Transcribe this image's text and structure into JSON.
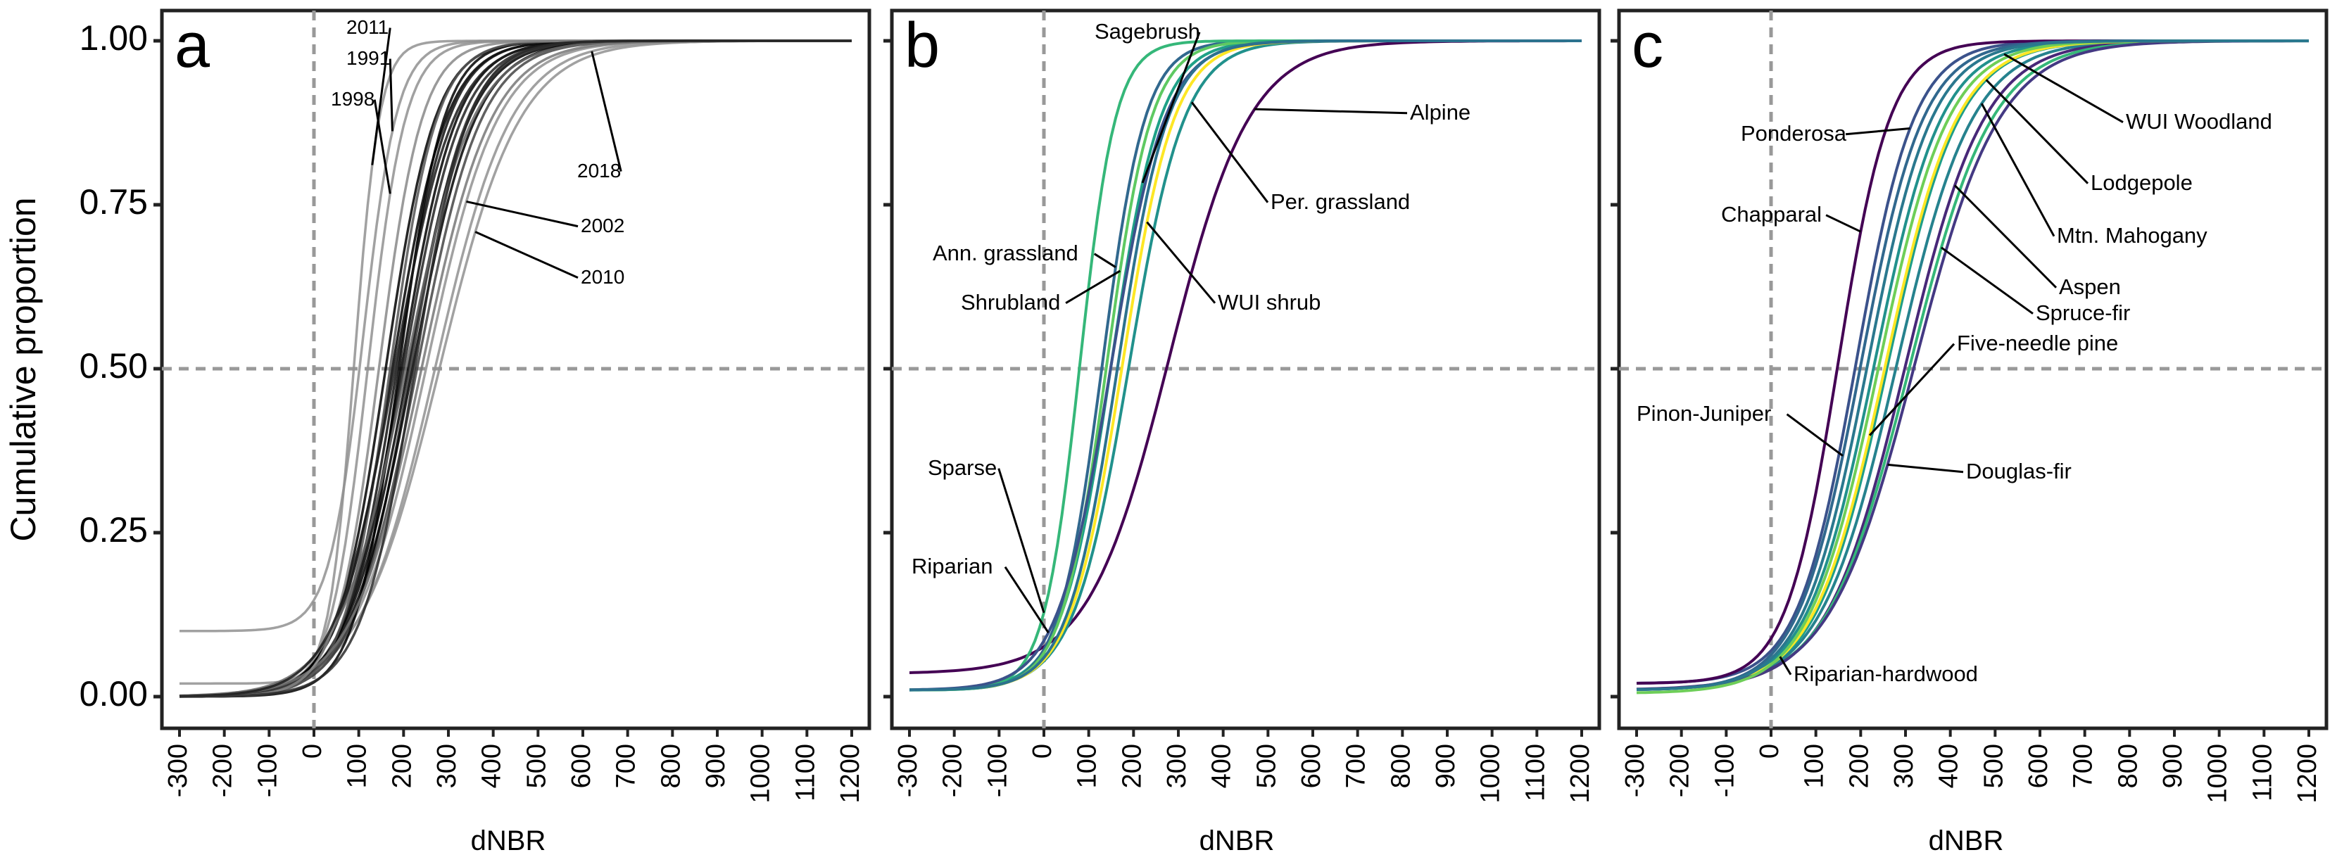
{
  "figure": {
    "ylabel": "Cumulative proportion",
    "xlabel": "dNBR",
    "ylim": [
      0,
      1
    ],
    "xlim": [
      -300,
      1200
    ],
    "yticks": [
      "0.00",
      "0.25",
      "0.50",
      "0.75",
      "1.00"
    ],
    "xticks": [
      "-300",
      "-200",
      "-100",
      "0",
      "100",
      "200",
      "300",
      "400",
      "500",
      "600",
      "700",
      "800",
      "900",
      "1000",
      "1100",
      "1200"
    ],
    "ref_lines": {
      "x": 0,
      "y": 0.5
    }
  },
  "chart_data": [
    {
      "panel": "a",
      "type": "line",
      "title": "a",
      "xlabel": "dNBR",
      "ylabel": "Cumulative proportion",
      "xlim": [
        -300,
        1200
      ],
      "ylim": [
        0,
        1
      ],
      "description_of_series": "annual cumulative dNBR curves",
      "series": [
        {
          "name": "2011",
          "mid": 90,
          "scale": 28,
          "base": 0.02,
          "color": "#909090",
          "label": "2011"
        },
        {
          "name": "1991",
          "mid": 110,
          "scale": 38,
          "base": 0.1,
          "color": "#909090",
          "label": "1991"
        },
        {
          "name": "1998",
          "mid": 120,
          "scale": 42,
          "base": 0.0,
          "color": "#909090",
          "label": "1998"
        },
        {
          "name": "2018",
          "mid": 270,
          "scale": 85,
          "base": 0.0,
          "color": "#909090",
          "label": "2018"
        },
        {
          "name": "2002",
          "mid": 250,
          "scale": 80,
          "base": 0.0,
          "color": "#909090",
          "label": "2002"
        },
        {
          "name": "2010",
          "mid": 280,
          "scale": 90,
          "base": 0.0,
          "color": "#909090",
          "label": "2010"
        },
        {
          "name": "y1",
          "mid": 160,
          "scale": 55,
          "base": 0.0,
          "color": "#000000"
        },
        {
          "name": "y2",
          "mid": 175,
          "scale": 60,
          "base": 0.0,
          "color": "#000000"
        },
        {
          "name": "y3",
          "mid": 185,
          "scale": 58,
          "base": 0.0,
          "color": "#111111"
        },
        {
          "name": "y4",
          "mid": 195,
          "scale": 62,
          "base": 0.0,
          "color": "#000000"
        },
        {
          "name": "y5",
          "mid": 200,
          "scale": 65,
          "base": 0.0,
          "color": "#222222"
        },
        {
          "name": "y6",
          "mid": 210,
          "scale": 68,
          "base": 0.0,
          "color": "#000000"
        },
        {
          "name": "y7",
          "mid": 215,
          "scale": 64,
          "base": 0.0,
          "color": "#333333"
        },
        {
          "name": "y8",
          "mid": 220,
          "scale": 70,
          "base": 0.0,
          "color": "#000000"
        },
        {
          "name": "y9",
          "mid": 230,
          "scale": 72,
          "base": 0.0,
          "color": "#444444"
        },
        {
          "name": "y10",
          "mid": 190,
          "scale": 50,
          "base": 0.0,
          "color": "#000000"
        },
        {
          "name": "y11",
          "mid": 170,
          "scale": 52,
          "base": 0.0,
          "color": "#555555"
        },
        {
          "name": "y12",
          "mid": 205,
          "scale": 75,
          "base": 0.0,
          "color": "#666666"
        },
        {
          "name": "y13",
          "mid": 240,
          "scale": 78,
          "base": 0.0,
          "color": "#777777"
        },
        {
          "name": "y14",
          "mid": 145,
          "scale": 48,
          "base": 0.0,
          "color": "#888888"
        },
        {
          "name": "y15",
          "mid": 180,
          "scale": 66,
          "base": 0.0,
          "color": "#1a1a1a"
        },
        {
          "name": "y16",
          "mid": 225,
          "scale": 60,
          "base": 0.0,
          "color": "#2a2a2a"
        }
      ]
    },
    {
      "panel": "b",
      "type": "line",
      "title": "b",
      "xlabel": "dNBR",
      "ylabel": "",
      "xlim": [
        -300,
        1200
      ],
      "ylim": [
        0,
        1
      ],
      "series": [
        {
          "name": "Sagebrush",
          "mid": 150,
          "scale": 55,
          "base": 0.01,
          "color": "#1fa187"
        },
        {
          "name": "Alpine",
          "mid": 280,
          "scale": 90,
          "base": 0.035,
          "color": "#440154"
        },
        {
          "name": "Per. grassland",
          "mid": 190,
          "scale": 62,
          "base": 0.01,
          "color": "#21918c"
        },
        {
          "name": "Ann. grassland",
          "mid": 130,
          "scale": 48,
          "base": 0.01,
          "color": "#31688e"
        },
        {
          "name": "Shrubland",
          "mid": 140,
          "scale": 50,
          "base": 0.01,
          "color": "#5ec962"
        },
        {
          "name": "WUI shrub",
          "mid": 175,
          "scale": 58,
          "base": 0.01,
          "color": "#fde725"
        },
        {
          "name": "Sparse",
          "mid": 80,
          "scale": 40,
          "base": 0.01,
          "color": "#35b779"
        },
        {
          "name": "Riparian",
          "mid": 150,
          "scale": 60,
          "base": 0.01,
          "color": "#3b528b"
        },
        {
          "name": "b9",
          "mid": 165,
          "scale": 56,
          "base": 0.01,
          "color": "#2c728e"
        }
      ],
      "labels": [
        "Sagebrush",
        "Alpine",
        "Per. grassland",
        "Ann. grassland",
        "Shrubland",
        "WUI shrub",
        "Sparse",
        "Riparian"
      ]
    },
    {
      "panel": "c",
      "type": "line",
      "title": "c",
      "xlabel": "dNBR",
      "ylabel": "",
      "xlim": [
        -300,
        1200
      ],
      "ylim": [
        0,
        1
      ],
      "series": [
        {
          "name": "Ponderosa",
          "mid": 190,
          "scale": 65,
          "base": 0.02,
          "color": "#3b528b"
        },
        {
          "name": "WUI Woodland",
          "mid": 230,
          "scale": 75,
          "base": 0.01,
          "color": "#21918c"
        },
        {
          "name": "Lodgepole",
          "mid": 260,
          "scale": 80,
          "base": 0.01,
          "color": "#1f9e89"
        },
        {
          "name": "Chapparal",
          "mid": 150,
          "scale": 58,
          "base": 0.02,
          "color": "#440154"
        },
        {
          "name": "Mtn. Mahogany",
          "mid": 280,
          "scale": 85,
          "base": 0.01,
          "color": "#26828e"
        },
        {
          "name": "Aspen",
          "mid": 300,
          "scale": 88,
          "base": 0.01,
          "color": "#482878"
        },
        {
          "name": "Spruce-fir",
          "mid": 310,
          "scale": 92,
          "base": 0.01,
          "color": "#35b779"
        },
        {
          "name": "Five-needle pine",
          "mid": 255,
          "scale": 80,
          "base": 0.01,
          "color": "#fde725"
        },
        {
          "name": "Pinon-Juniper",
          "mid": 200,
          "scale": 70,
          "base": 0.01,
          "color": "#31688e"
        },
        {
          "name": "Douglas-fir",
          "mid": 320,
          "scale": 95,
          "base": 0.01,
          "color": "#443983"
        },
        {
          "name": "Riparian-hardwood",
          "mid": 240,
          "scale": 78,
          "base": 0.005,
          "color": "#6ece58"
        },
        {
          "name": "c12",
          "mid": 215,
          "scale": 72,
          "base": 0.01,
          "color": "#2a788e"
        }
      ],
      "labels": [
        "Ponderosa",
        "WUI Woodland",
        "Lodgepole",
        "Chapparal",
        "Mtn. Mahogany",
        "Aspen",
        "Spruce-fir",
        "Five-needle pine",
        "Pinon-Juniper",
        "Douglas-fir",
        "Riparian-hardwood"
      ]
    }
  ]
}
